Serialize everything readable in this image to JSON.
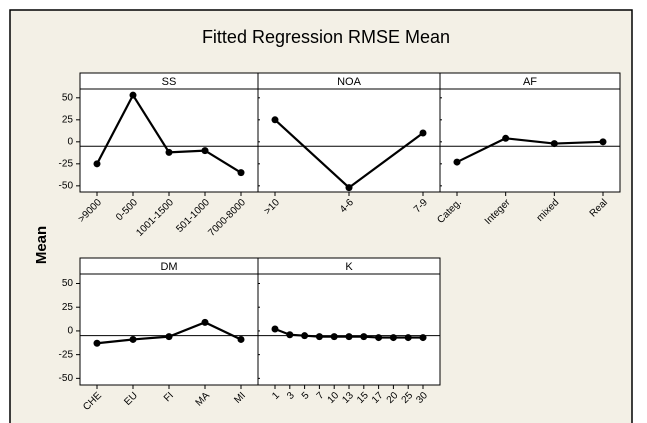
{
  "title": "Fitted Regression RMSE Mean",
  "ylabel": "Mean",
  "chart_data": [
    {
      "type": "line",
      "title": "SS",
      "categories": [
        ">9000",
        "0-500",
        "1001-1500",
        "501-1000",
        "7000-8000"
      ],
      "values": [
        -25,
        53,
        -12,
        -10,
        -35
      ],
      "ylim": [
        -57,
        60
      ],
      "yticks": [
        -50,
        -25,
        0,
        25,
        50
      ],
      "reference_line": -5,
      "color": "#000000"
    },
    {
      "type": "line",
      "title": "NOA",
      "categories": [
        ">10",
        "4-6",
        "7-9"
      ],
      "values": [
        25,
        -52,
        10
      ],
      "ylim": [
        -57,
        60
      ],
      "yticks": [
        -50,
        -25,
        0,
        25,
        50
      ],
      "reference_line": -5,
      "color": "#000000"
    },
    {
      "type": "line",
      "title": "AF",
      "categories": [
        "Categ.",
        "Integer",
        "mixed",
        "Real"
      ],
      "values": [
        -23,
        4,
        -2,
        0
      ],
      "ylim": [
        -57,
        60
      ],
      "yticks": [
        -50,
        -25,
        0,
        25,
        50
      ],
      "reference_line": -5,
      "color": "#000000"
    },
    {
      "type": "line",
      "title": "DM",
      "categories": [
        "CHE",
        "EU",
        "FI",
        "MA",
        "MI"
      ],
      "values": [
        -13,
        -9,
        -6,
        9,
        -9
      ],
      "ylim": [
        -57,
        60
      ],
      "yticks": [
        -50,
        -25,
        0,
        25,
        50
      ],
      "reference_line": -5,
      "color": "#000000"
    },
    {
      "type": "line",
      "title": "K",
      "categories": [
        "1",
        "3",
        "5",
        "7",
        "10",
        "13",
        "15",
        "17",
        "20",
        "25",
        "30"
      ],
      "values": [
        2,
        -4,
        -5,
        -6,
        -6,
        -6,
        -6,
        -7,
        -7,
        -7,
        -7
      ],
      "ylim": [
        -57,
        60
      ],
      "yticks": [
        -50,
        -25,
        0,
        25,
        50
      ],
      "reference_line": -5,
      "color": "#000000"
    }
  ]
}
